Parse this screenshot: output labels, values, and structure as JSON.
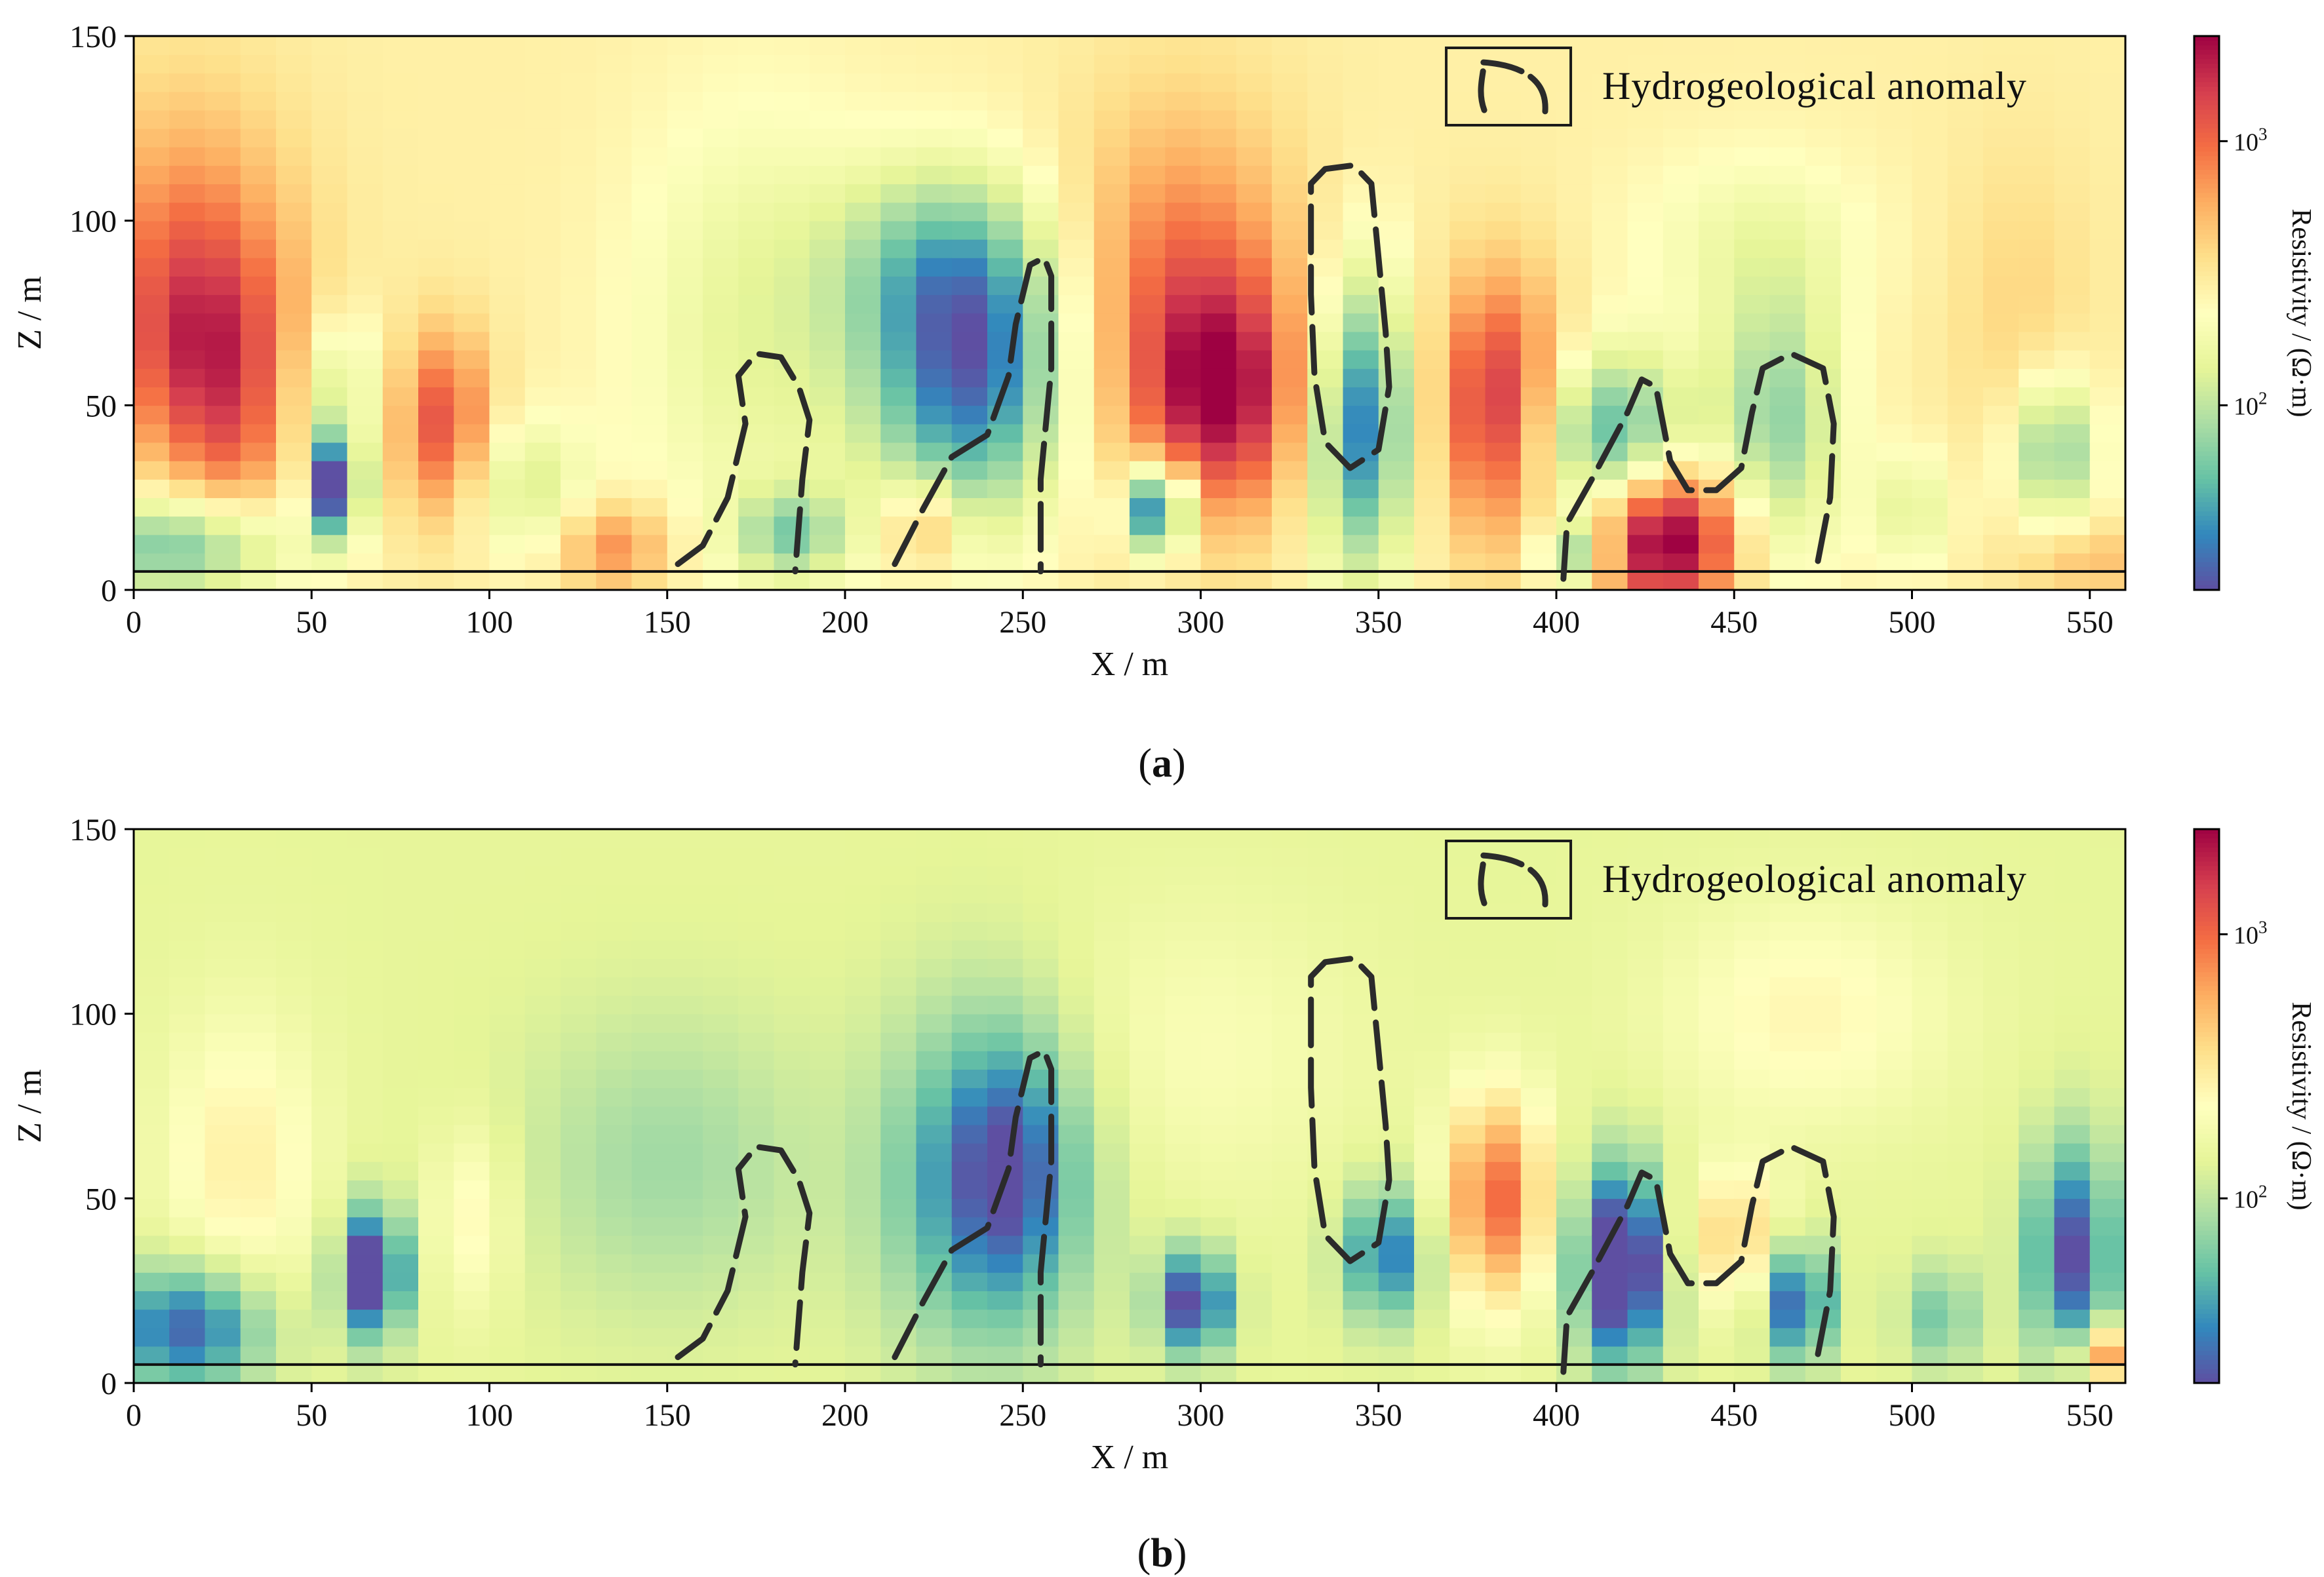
{
  "figure": {
    "captions": [
      {
        "label": "a"
      },
      {
        "label": "b"
      }
    ]
  },
  "colors": {
    "colormap": [
      "#5e4fa2",
      "#3288bd",
      "#66c2a5",
      "#abdda4",
      "#e6f598",
      "#ffffbf",
      "#fee08b",
      "#fdae61",
      "#f46d43",
      "#d53e4f",
      "#9e0142"
    ],
    "boundary": "#2b2b2b",
    "frame": "#000000"
  },
  "chart_data": [
    {
      "type": "heatmap",
      "panel": "a",
      "title": "",
      "xlabel": "X / m",
      "ylabel": "Z / m",
      "xlim": [
        0,
        560
      ],
      "ylim": [
        0,
        150
      ],
      "xticks": [
        0,
        50,
        100,
        150,
        200,
        250,
        300,
        350,
        400,
        450,
        500,
        550
      ],
      "yticks": [
        0,
        50,
        100,
        150
      ],
      "colorbar": {
        "label": "Resistivity / (Ω·m)",
        "scale": "log",
        "range": [
          20,
          2500
        ],
        "ticks": [
          {
            "value": 1000,
            "label": "10",
            "exp": "3"
          },
          {
            "value": 100,
            "label": "10",
            "exp": "2"
          }
        ]
      },
      "legend": {
        "label": "Hydrogeological anomaly",
        "position": "top-right"
      },
      "surface_line_z": 5,
      "background_log10": 2.45,
      "anomalies_log10": [
        {
          "x": 15,
          "z": 90,
          "rx": 30,
          "rz": 45,
          "d": 0.45
        },
        {
          "x": 22,
          "z": 62,
          "rx": 24,
          "rz": 32,
          "d": 0.55
        },
        {
          "x": 28,
          "z": 35,
          "rx": 14,
          "rz": 22,
          "d": 0.2
        },
        {
          "x": 57,
          "z": 28,
          "rx": 7,
          "rz": 14,
          "d": -1.3
        },
        {
          "x": 57,
          "z": 55,
          "rx": 12,
          "rz": 20,
          "d": -0.4
        },
        {
          "x": 87,
          "z": 45,
          "rx": 13,
          "rz": 25,
          "d": 0.65
        },
        {
          "x": 12,
          "z": 12,
          "rx": 30,
          "rz": 14,
          "d": -0.7
        },
        {
          "x": 110,
          "z": 28,
          "rx": 18,
          "rz": 18,
          "d": -0.35
        },
        {
          "x": 135,
          "z": 12,
          "rx": 15,
          "rz": 12,
          "d": 0.45
        },
        {
          "x": 175,
          "z": 70,
          "rx": 35,
          "rz": 60,
          "d": -0.3
        },
        {
          "x": 185,
          "z": 15,
          "rx": 15,
          "rz": 12,
          "d": -0.55
        },
        {
          "x": 235,
          "z": 60,
          "rx": 28,
          "rz": 40,
          "d": -1.05
        },
        {
          "x": 225,
          "z": 90,
          "rx": 30,
          "rz": 25,
          "d": -0.35
        },
        {
          "x": 222,
          "z": 18,
          "rx": 10,
          "rz": 12,
          "d": 0.45
        },
        {
          "x": 288,
          "z": 22,
          "rx": 9,
          "rz": 12,
          "d": -1.2
        },
        {
          "x": 295,
          "z": 78,
          "rx": 32,
          "rz": 50,
          "d": 0.55
        },
        {
          "x": 307,
          "z": 52,
          "rx": 22,
          "rz": 30,
          "d": 0.65
        },
        {
          "x": 345,
          "z": 45,
          "rx": 14,
          "rz": 40,
          "d": -1.0
        },
        {
          "x": 384,
          "z": 50,
          "rx": 18,
          "rz": 35,
          "d": 0.8
        },
        {
          "x": 415,
          "z": 40,
          "rx": 22,
          "rz": 24,
          "d": -0.85
        },
        {
          "x": 405,
          "z": 10,
          "rx": 10,
          "rz": 10,
          "d": -0.7
        },
        {
          "x": 430,
          "z": 15,
          "rx": 22,
          "rz": 20,
          "d": 1.15
        },
        {
          "x": 462,
          "z": 45,
          "rx": 18,
          "rz": 38,
          "d": -0.6
        },
        {
          "x": 455,
          "z": 95,
          "rx": 35,
          "rz": 25,
          "d": -0.2
        },
        {
          "x": 500,
          "z": 22,
          "rx": 12,
          "rz": 16,
          "d": -0.3
        },
        {
          "x": 530,
          "z": 75,
          "rx": 20,
          "rz": 45,
          "d": 0.15
        },
        {
          "x": 540,
          "z": 38,
          "rx": 12,
          "rz": 20,
          "d": -0.65
        },
        {
          "x": 550,
          "z": 8,
          "rx": 20,
          "rz": 10,
          "d": 0.25
        }
      ]
    },
    {
      "type": "heatmap",
      "panel": "b",
      "title": "",
      "xlabel": "X / m",
      "ylabel": "Z / m",
      "xlim": [
        0,
        560
      ],
      "ylim": [
        0,
        150
      ],
      "xticks": [
        0,
        50,
        100,
        150,
        200,
        250,
        300,
        350,
        400,
        450,
        500,
        550
      ],
      "yticks": [
        0,
        50,
        100,
        150
      ],
      "colorbar": {
        "label": "Resistivity / (Ω·m)",
        "scale": "log",
        "range": [
          20,
          2500
        ],
        "ticks": [
          {
            "value": 1000,
            "label": "10",
            "exp": "3"
          },
          {
            "value": 100,
            "label": "10",
            "exp": "2"
          }
        ]
      },
      "legend": {
        "label": "Hydrogeological anomaly",
        "position": "top-right"
      },
      "surface_line_z": 5,
      "background_log10": 2.15,
      "anomalies_log10": [
        {
          "x": 30,
          "z": 60,
          "rx": 22,
          "rz": 40,
          "d": 0.3
        },
        {
          "x": 15,
          "z": 15,
          "rx": 22,
          "rz": 17,
          "d": -0.8
        },
        {
          "x": 67,
          "z": 30,
          "rx": 9,
          "rz": 17,
          "d": -1.1
        },
        {
          "x": 95,
          "z": 45,
          "rx": 12,
          "rz": 25,
          "d": 0.25
        },
        {
          "x": 150,
          "z": 60,
          "rx": 40,
          "rz": 40,
          "d": -0.25
        },
        {
          "x": 240,
          "z": 55,
          "rx": 28,
          "rz": 45,
          "d": -0.7
        },
        {
          "x": 248,
          "z": 60,
          "rx": 15,
          "rz": 30,
          "d": -0.3
        },
        {
          "x": 298,
          "z": 22,
          "rx": 10,
          "rz": 14,
          "d": -0.95
        },
        {
          "x": 300,
          "z": 90,
          "rx": 45,
          "rz": 40,
          "d": 0.15
        },
        {
          "x": 352,
          "z": 35,
          "rx": 12,
          "rz": 18,
          "d": -0.7
        },
        {
          "x": 383,
          "z": 50,
          "rx": 14,
          "rz": 28,
          "d": 0.85
        },
        {
          "x": 418,
          "z": 32,
          "rx": 12,
          "rz": 26,
          "d": -1.2
        },
        {
          "x": 450,
          "z": 40,
          "rx": 14,
          "rz": 18,
          "d": 0.45
        },
        {
          "x": 468,
          "z": 22,
          "rx": 9,
          "rz": 16,
          "d": -0.85
        },
        {
          "x": 470,
          "z": 100,
          "rx": 40,
          "rz": 30,
          "d": 0.25
        },
        {
          "x": 508,
          "z": 18,
          "rx": 10,
          "rz": 14,
          "d": -0.4
        },
        {
          "x": 545,
          "z": 35,
          "rx": 12,
          "rz": 30,
          "d": -0.85
        },
        {
          "x": 555,
          "z": 8,
          "rx": 10,
          "rz": 8,
          "d": 0.8
        }
      ]
    }
  ],
  "anomaly_outlines": [
    {
      "name": "anomaly-1",
      "points": [
        [
          153,
          7
        ],
        [
          160,
          12
        ],
        [
          167,
          25
        ],
        [
          172,
          45
        ],
        [
          170,
          58
        ],
        [
          175,
          64
        ],
        [
          182,
          63
        ],
        [
          187,
          55
        ],
        [
          190,
          46
        ],
        [
          188,
          30
        ],
        [
          186,
          5
        ]
      ]
    },
    {
      "name": "anomaly-2",
      "points": [
        [
          214,
          7
        ],
        [
          222,
          22
        ],
        [
          230,
          36
        ],
        [
          240,
          42
        ],
        [
          246,
          58
        ],
        [
          248,
          72
        ],
        [
          252,
          88
        ],
        [
          256,
          90
        ],
        [
          258,
          85
        ],
        [
          258,
          60
        ],
        [
          255,
          30
        ],
        [
          255,
          5
        ]
      ]
    },
    {
      "name": "anomaly-3",
      "points": [
        [
          331,
          110
        ],
        [
          335,
          114
        ],
        [
          343,
          115
        ],
        [
          348,
          110
        ],
        [
          350,
          90
        ],
        [
          352,
          70
        ],
        [
          353,
          55
        ],
        [
          350,
          38
        ],
        [
          342,
          33
        ],
        [
          335,
          40
        ],
        [
          332,
          58
        ],
        [
          331,
          80
        ],
        [
          331,
          110
        ]
      ]
    },
    {
      "name": "anomaly-4",
      "points": [
        [
          402,
          3
        ],
        [
          403,
          18
        ],
        [
          410,
          30
        ],
        [
          420,
          48
        ],
        [
          424,
          57
        ],
        [
          428,
          55
        ],
        [
          430,
          45
        ],
        [
          432,
          35
        ],
        [
          437,
          27
        ],
        [
          445,
          27
        ],
        [
          452,
          33
        ],
        [
          455,
          48
        ],
        [
          458,
          60
        ],
        [
          466,
          64
        ],
        [
          475,
          60
        ],
        [
          478,
          45
        ],
        [
          477,
          25
        ],
        [
          473,
          5
        ]
      ]
    }
  ]
}
